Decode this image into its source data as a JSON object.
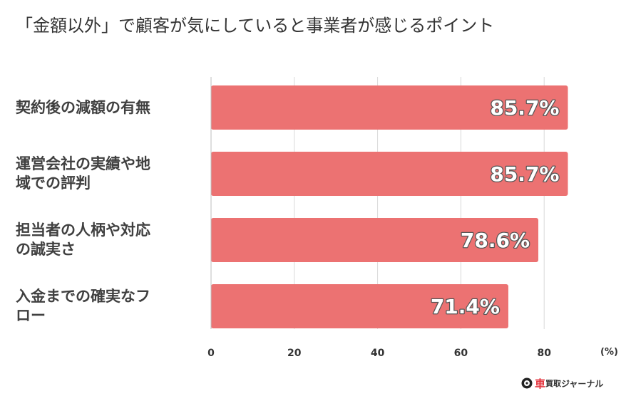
{
  "title": "「金額以外」で顧客が気にしていると事業者が感じるポイント",
  "chart_data": {
    "type": "bar",
    "orientation": "horizontal",
    "categories": [
      "契約後の減額の有無",
      "運営会社の実績や地域での評判",
      "担当者の人柄や対応の誠実さ",
      "入金までの確実なフロー"
    ],
    "category_lines": [
      [
        "契約後の減額の有無"
      ],
      [
        "運営会社の実績や地",
        "域での評判"
      ],
      [
        "担当者の人柄や対応",
        "の誠実さ"
      ],
      [
        "入金までの確実なフ",
        "ロー"
      ]
    ],
    "values": [
      85.7,
      85.7,
      78.6,
      71.4
    ],
    "value_labels": [
      "85.7%",
      "85.7%",
      "78.6%",
      "71.4%"
    ],
    "xlim": [
      0,
      100
    ],
    "xticks": [
      0,
      20,
      40,
      60,
      80
    ],
    "unit": "(%)",
    "grid": true,
    "bar_color": "#ec7272",
    "grid_color": "#d9d9d9"
  },
  "logo": {
    "part1": "車",
    "part2": "買取",
    "part3": "ジャーナル",
    "icon": "tire-icon"
  }
}
